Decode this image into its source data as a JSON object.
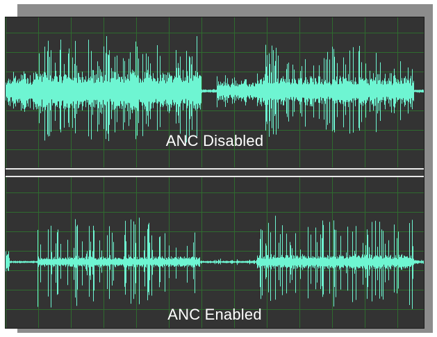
{
  "tracks": [
    {
      "label": "ANC Disabled",
      "waveform_color": "#6ef5d2"
    },
    {
      "label": "ANC Enabled",
      "waveform_color": "#6ef5d2"
    }
  ],
  "colors": {
    "background": "#333333",
    "grid": "#2f6b2f",
    "separator": "#e8e8e8",
    "shadow": "#8c8c8c"
  }
}
